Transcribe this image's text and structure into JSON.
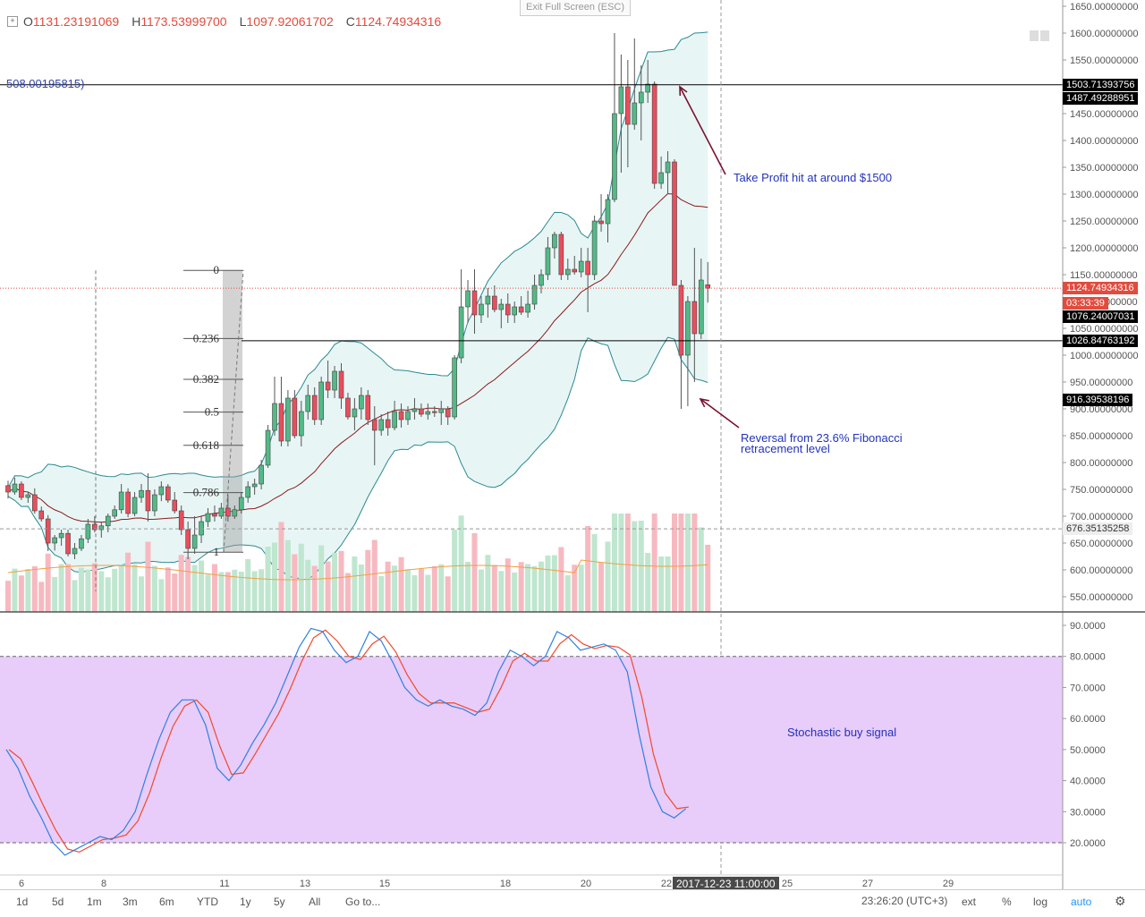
{
  "ohlc": {
    "open_label": "O",
    "open": "1131.23191069",
    "high_label": "H",
    "high": "1173.53999700",
    "low_label": "L",
    "low": "1097.92061702",
    "close_label": "C",
    "close": "1124.74934316"
  },
  "exit_fullscreen": "Exit Full Screen (ESC)",
  "fib_value_label": "508.00195815)",
  "fib_levels": [
    {
      "label": "0",
      "price": 1158
    },
    {
      "label": "0.236",
      "price": 1031
    },
    {
      "label": "0.382",
      "price": 955
    },
    {
      "label": "0.5",
      "price": 894
    },
    {
      "label": "0.618",
      "price": 832
    },
    {
      "label": "0.786",
      "price": 744
    },
    {
      "label": "1",
      "price": 633
    }
  ],
  "annotations": {
    "take_profit": "Take Profit hit at around $1500",
    "reversal_line1": "Reversal from 23.6% Fibonacci",
    "reversal_line2": "retracement level",
    "stochastic": "Stochastic buy signal"
  },
  "price_axis_ticks": [
    "1650.00000000",
    "1600.00000000",
    "1550.00000000",
    "1500.00000000",
    "1450.00000000",
    "1400.00000000",
    "1350.00000000",
    "1300.00000000",
    "1250.00000000",
    "1200.00000000",
    "1150.00000000",
    "1100.00000000",
    "1050.00000000",
    "1000.00000000",
    "950.00000000",
    "900.00000000",
    "850.00000000",
    "800.00000000",
    "750.00000000",
    "700.00000000",
    "650.00000000",
    "600.00000000",
    "550.00000000"
  ],
  "price_tags": [
    {
      "label": "1503.71393756",
      "price": 1503.7,
      "bg": "#000000",
      "fg": "#ffffff"
    },
    {
      "label": "1487.49288951",
      "price": 1478,
      "bg": "#000000",
      "fg": "#ffffff"
    },
    {
      "label": "1124.74934316",
      "price": 1124.7,
      "bg": "#e24b3d",
      "fg": "#ffffff"
    },
    {
      "label": "03:33:39",
      "price": 1097,
      "bg": "#e24b3d",
      "fg": "#ffffff"
    },
    {
      "label": "1076.24007031",
      "price": 1071,
      "bg": "#000000",
      "fg": "#ffffff"
    },
    {
      "label": "1026.84763192",
      "price": 1026.8,
      "bg": "#000000",
      "fg": "#ffffff"
    },
    {
      "label": "916.39538196",
      "price": 916.4,
      "bg": "#000000",
      "fg": "#ffffff"
    },
    {
      "label": "676.35135258",
      "price": 676.4,
      "bg": "#eeeeee",
      "fg": "#333333"
    }
  ],
  "stoch_axis_ticks": [
    "90.0000",
    "80.0000",
    "70.0000",
    "60.0000",
    "50.0000",
    "40.0000",
    "30.0000",
    "20.0000"
  ],
  "x_axis_ticks": [
    "6",
    "8",
    "11",
    "13",
    "15",
    "18",
    "20",
    "22",
    "25",
    "27",
    "29"
  ],
  "crosshair_time": "2017-12-23 11:00:00",
  "timeframes": [
    "1d",
    "5d",
    "1m",
    "3m",
    "6m",
    "YTD",
    "1y",
    "5y",
    "All"
  ],
  "goto_label": "Go to...",
  "clock": "23:26:20 (UTC+3)",
  "right_controls": [
    "ext",
    "%",
    "log",
    "auto"
  ],
  "colors": {
    "up": "#53b987",
    "down": "#eb4d5c",
    "band_fill": "#e8f5f5",
    "band_line": "#2a8a92",
    "ma_line": "#8b1a1a",
    "stoch_bg": "#e8ccfa",
    "stoch_k": "#2f80e0",
    "stoch_d": "#f04a2a",
    "annot": "#2233bb",
    "arrow": "#7a1230"
  },
  "chart_data": {
    "type": "candlestick",
    "candles": [
      {
        "o": 757,
        "h": 766,
        "l": 733,
        "c": 745
      },
      {
        "o": 745,
        "h": 772,
        "l": 740,
        "c": 760
      },
      {
        "o": 760,
        "h": 765,
        "l": 730,
        "c": 735
      },
      {
        "o": 735,
        "h": 745,
        "l": 725,
        "c": 740
      },
      {
        "o": 740,
        "h": 752,
        "l": 705,
        "c": 710
      },
      {
        "o": 710,
        "h": 718,
        "l": 690,
        "c": 695
      },
      {
        "o": 695,
        "h": 702,
        "l": 635,
        "c": 650
      },
      {
        "o": 650,
        "h": 665,
        "l": 636,
        "c": 660
      },
      {
        "o": 660,
        "h": 675,
        "l": 645,
        "c": 668
      },
      {
        "o": 668,
        "h": 675,
        "l": 625,
        "c": 630
      },
      {
        "o": 630,
        "h": 650,
        "l": 620,
        "c": 640
      },
      {
        "o": 640,
        "h": 665,
        "l": 635,
        "c": 658
      },
      {
        "o": 658,
        "h": 695,
        "l": 650,
        "c": 685
      },
      {
        "o": 685,
        "h": 700,
        "l": 670,
        "c": 675
      },
      {
        "o": 675,
        "h": 690,
        "l": 660,
        "c": 682
      },
      {
        "o": 682,
        "h": 705,
        "l": 670,
        "c": 700
      },
      {
        "o": 700,
        "h": 720,
        "l": 695,
        "c": 712
      },
      {
        "o": 712,
        "h": 760,
        "l": 705,
        "c": 745
      },
      {
        "o": 745,
        "h": 752,
        "l": 698,
        "c": 705
      },
      {
        "o": 705,
        "h": 745,
        "l": 700,
        "c": 735
      },
      {
        "o": 735,
        "h": 760,
        "l": 725,
        "c": 748
      },
      {
        "o": 748,
        "h": 780,
        "l": 690,
        "c": 710
      },
      {
        "o": 710,
        "h": 750,
        "l": 700,
        "c": 740
      },
      {
        "o": 740,
        "h": 765,
        "l": 728,
        "c": 755
      },
      {
        "o": 755,
        "h": 760,
        "l": 725,
        "c": 730
      },
      {
        "o": 730,
        "h": 745,
        "l": 705,
        "c": 710
      },
      {
        "o": 710,
        "h": 720,
        "l": 665,
        "c": 675
      },
      {
        "o": 675,
        "h": 690,
        "l": 620,
        "c": 640
      },
      {
        "o": 640,
        "h": 700,
        "l": 630,
        "c": 665
      },
      {
        "o": 665,
        "h": 700,
        "l": 650,
        "c": 690
      },
      {
        "o": 690,
        "h": 715,
        "l": 680,
        "c": 705
      },
      {
        "o": 705,
        "h": 720,
        "l": 690,
        "c": 700
      },
      {
        "o": 700,
        "h": 725,
        "l": 695,
        "c": 715
      },
      {
        "o": 715,
        "h": 740,
        "l": 690,
        "c": 700
      },
      {
        "o": 700,
        "h": 720,
        "l": 695,
        "c": 712
      },
      {
        "o": 712,
        "h": 745,
        "l": 705,
        "c": 735
      },
      {
        "o": 735,
        "h": 765,
        "l": 725,
        "c": 755
      },
      {
        "o": 755,
        "h": 770,
        "l": 740,
        "c": 760
      },
      {
        "o": 760,
        "h": 805,
        "l": 750,
        "c": 795
      },
      {
        "o": 795,
        "h": 870,
        "l": 790,
        "c": 860
      },
      {
        "o": 860,
        "h": 960,
        "l": 850,
        "c": 910
      },
      {
        "o": 910,
        "h": 960,
        "l": 830,
        "c": 840
      },
      {
        "o": 840,
        "h": 935,
        "l": 830,
        "c": 920
      },
      {
        "o": 920,
        "h": 935,
        "l": 845,
        "c": 850
      },
      {
        "o": 850,
        "h": 915,
        "l": 830,
        "c": 895
      },
      {
        "o": 895,
        "h": 945,
        "l": 880,
        "c": 925
      },
      {
        "o": 925,
        "h": 940,
        "l": 870,
        "c": 880
      },
      {
        "o": 880,
        "h": 960,
        "l": 870,
        "c": 950
      },
      {
        "o": 950,
        "h": 990,
        "l": 920,
        "c": 935
      },
      {
        "o": 935,
        "h": 980,
        "l": 920,
        "c": 970
      },
      {
        "o": 970,
        "h": 985,
        "l": 900,
        "c": 920
      },
      {
        "o": 920,
        "h": 930,
        "l": 880,
        "c": 885
      },
      {
        "o": 885,
        "h": 920,
        "l": 860,
        "c": 900
      },
      {
        "o": 900,
        "h": 940,
        "l": 880,
        "c": 925
      },
      {
        "o": 925,
        "h": 935,
        "l": 870,
        "c": 880
      },
      {
        "o": 880,
        "h": 905,
        "l": 795,
        "c": 860
      },
      {
        "o": 860,
        "h": 890,
        "l": 850,
        "c": 880
      },
      {
        "o": 880,
        "h": 895,
        "l": 850,
        "c": 865
      },
      {
        "o": 865,
        "h": 915,
        "l": 860,
        "c": 895
      },
      {
        "o": 895,
        "h": 910,
        "l": 865,
        "c": 880
      },
      {
        "o": 880,
        "h": 905,
        "l": 870,
        "c": 895
      },
      {
        "o": 895,
        "h": 920,
        "l": 880,
        "c": 900
      },
      {
        "o": 900,
        "h": 910,
        "l": 885,
        "c": 890
      },
      {
        "o": 890,
        "h": 910,
        "l": 880,
        "c": 895
      },
      {
        "o": 895,
        "h": 905,
        "l": 885,
        "c": 893
      },
      {
        "o": 893,
        "h": 915,
        "l": 870,
        "c": 900
      },
      {
        "o": 900,
        "h": 905,
        "l": 870,
        "c": 885
      },
      {
        "o": 885,
        "h": 1000,
        "l": 880,
        "c": 995
      },
      {
        "o": 995,
        "h": 1160,
        "l": 985,
        "c": 1090
      },
      {
        "o": 1090,
        "h": 1140,
        "l": 1060,
        "c": 1120
      },
      {
        "o": 1120,
        "h": 1160,
        "l": 1040,
        "c": 1075
      },
      {
        "o": 1075,
        "h": 1110,
        "l": 1060,
        "c": 1095
      },
      {
        "o": 1095,
        "h": 1125,
        "l": 1070,
        "c": 1110
      },
      {
        "o": 1110,
        "h": 1130,
        "l": 1080,
        "c": 1085
      },
      {
        "o": 1085,
        "h": 1105,
        "l": 1050,
        "c": 1095
      },
      {
        "o": 1095,
        "h": 1115,
        "l": 1060,
        "c": 1075
      },
      {
        "o": 1075,
        "h": 1100,
        "l": 1060,
        "c": 1090
      },
      {
        "o": 1090,
        "h": 1110,
        "l": 1075,
        "c": 1080
      },
      {
        "o": 1080,
        "h": 1120,
        "l": 1070,
        "c": 1095
      },
      {
        "o": 1095,
        "h": 1150,
        "l": 1085,
        "c": 1130
      },
      {
        "o": 1130,
        "h": 1160,
        "l": 1115,
        "c": 1150
      },
      {
        "o": 1150,
        "h": 1220,
        "l": 1140,
        "c": 1200
      },
      {
        "o": 1200,
        "h": 1230,
        "l": 1180,
        "c": 1225
      },
      {
        "o": 1225,
        "h": 1230,
        "l": 1140,
        "c": 1150
      },
      {
        "o": 1150,
        "h": 1180,
        "l": 1140,
        "c": 1160
      },
      {
        "o": 1160,
        "h": 1185,
        "l": 1150,
        "c": 1155
      },
      {
        "o": 1155,
        "h": 1200,
        "l": 1145,
        "c": 1175
      },
      {
        "o": 1175,
        "h": 1200,
        "l": 1080,
        "c": 1150
      },
      {
        "o": 1150,
        "h": 1260,
        "l": 1140,
        "c": 1250
      },
      {
        "o": 1250,
        "h": 1300,
        "l": 1230,
        "c": 1245
      },
      {
        "o": 1245,
        "h": 1300,
        "l": 1210,
        "c": 1290
      },
      {
        "o": 1290,
        "h": 1600,
        "l": 1285,
        "c": 1450
      },
      {
        "o": 1450,
        "h": 1560,
        "l": 1340,
        "c": 1500
      },
      {
        "o": 1500,
        "h": 1550,
        "l": 1350,
        "c": 1430
      },
      {
        "o": 1430,
        "h": 1590,
        "l": 1420,
        "c": 1470
      },
      {
        "o": 1470,
        "h": 1540,
        "l": 1400,
        "c": 1490
      },
      {
        "o": 1490,
        "h": 1550,
        "l": 1470,
        "c": 1505
      },
      {
        "o": 1505,
        "h": 1510,
        "l": 1310,
        "c": 1320
      },
      {
        "o": 1320,
        "h": 1370,
        "l": 1310,
        "c": 1340
      },
      {
        "o": 1340,
        "h": 1380,
        "l": 1300,
        "c": 1360
      },
      {
        "o": 1360,
        "h": 1365,
        "l": 1130,
        "c": 1130
      },
      {
        "o": 1130,
        "h": 1140,
        "l": 900,
        "c": 1000
      },
      {
        "o": 1000,
        "h": 1110,
        "l": 905,
        "c": 1100
      },
      {
        "o": 1100,
        "h": 1200,
        "l": 950,
        "c": 1040
      },
      {
        "o": 1040,
        "h": 1180,
        "l": 1030,
        "c": 1140
      },
      {
        "o": 1131.2,
        "h": 1173.5,
        "l": 1097.9,
        "c": 1124.7
      }
    ],
    "price_range": [
      530,
      1660
    ],
    "stoch_range": [
      15,
      95
    ],
    "stoch_levels": [
      80,
      20
    ]
  }
}
